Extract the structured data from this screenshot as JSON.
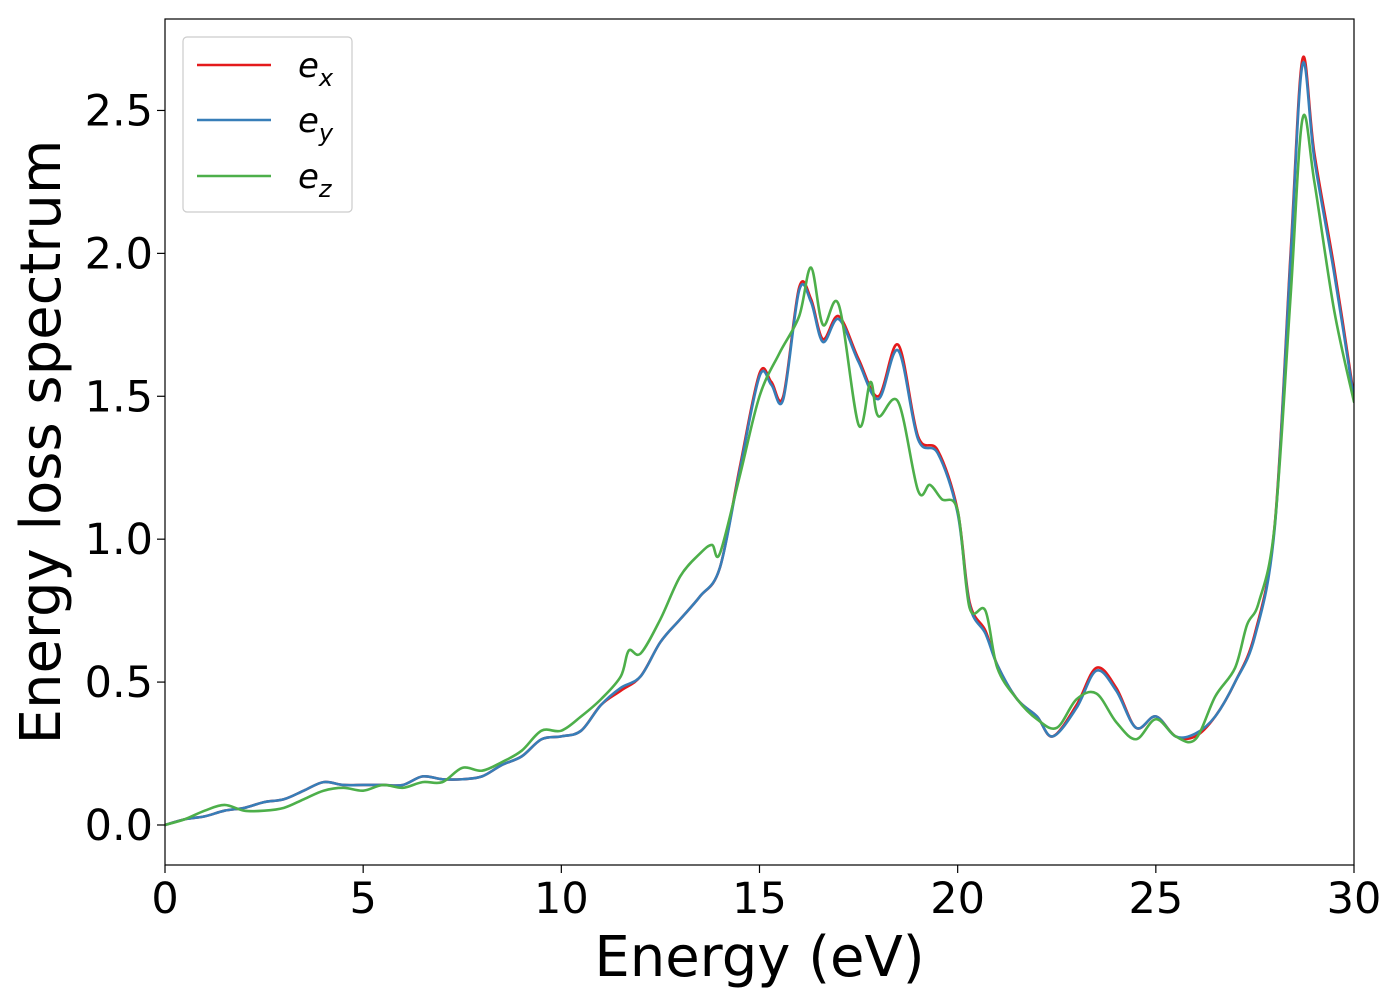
{
  "chart_data": {
    "type": "line",
    "title": "",
    "xlabel": "Energy (eV)",
    "ylabel": "Energy loss spectrum",
    "xlim": [
      0,
      30
    ],
    "ylim": [
      -0.14,
      2.82
    ],
    "grid": false,
    "legend_position": "top-left",
    "x_ticks": [
      0,
      5,
      10,
      15,
      20,
      25,
      30
    ],
    "x_tick_labels": [
      "0",
      "5",
      "10",
      "15",
      "20",
      "25",
      "30"
    ],
    "y_ticks": [
      0.0,
      0.5,
      1.0,
      1.5,
      2.0,
      2.5
    ],
    "y_tick_labels": [
      "0.0",
      "0.5",
      "1.0",
      "1.5",
      "2.0",
      "2.5"
    ],
    "series": [
      {
        "name": "e_x",
        "label_base": "e",
        "label_sub": "x",
        "color": "#e41a1c",
        "points": [
          [
            0,
            0
          ],
          [
            0.5,
            0.02
          ],
          [
            1,
            0.03
          ],
          [
            1.5,
            0.05
          ],
          [
            2,
            0.06
          ],
          [
            2.5,
            0.08
          ],
          [
            3,
            0.09
          ],
          [
            3.5,
            0.12
          ],
          [
            4,
            0.15
          ],
          [
            4.5,
            0.14
          ],
          [
            5,
            0.14
          ],
          [
            5.5,
            0.14
          ],
          [
            6,
            0.14
          ],
          [
            6.5,
            0.17
          ],
          [
            7,
            0.16
          ],
          [
            7.5,
            0.16
          ],
          [
            8,
            0.17
          ],
          [
            8.5,
            0.21
          ],
          [
            9,
            0.24
          ],
          [
            9.5,
            0.3
          ],
          [
            10,
            0.31
          ],
          [
            10.5,
            0.33
          ],
          [
            11,
            0.42
          ],
          [
            11.5,
            0.47
          ],
          [
            12,
            0.52
          ],
          [
            12.5,
            0.64
          ],
          [
            13,
            0.72
          ],
          [
            13.5,
            0.8
          ],
          [
            14,
            0.9
          ],
          [
            14.5,
            1.25
          ],
          [
            15,
            1.58
          ],
          [
            15.3,
            1.55
          ],
          [
            15.6,
            1.5
          ],
          [
            16,
            1.88
          ],
          [
            16.3,
            1.84
          ],
          [
            16.6,
            1.7
          ],
          [
            17,
            1.78
          ],
          [
            17.5,
            1.63
          ],
          [
            18,
            1.5
          ],
          [
            18.5,
            1.68
          ],
          [
            19,
            1.36
          ],
          [
            19.5,
            1.31
          ],
          [
            20,
            1.1
          ],
          [
            20.3,
            0.78
          ],
          [
            20.7,
            0.68
          ],
          [
            21,
            0.56
          ],
          [
            21.5,
            0.44
          ],
          [
            22,
            0.38
          ],
          [
            22.4,
            0.31
          ],
          [
            23,
            0.42
          ],
          [
            23.5,
            0.55
          ],
          [
            24,
            0.48
          ],
          [
            24.5,
            0.34
          ],
          [
            25,
            0.38
          ],
          [
            25.5,
            0.31
          ],
          [
            26,
            0.31
          ],
          [
            26.5,
            0.38
          ],
          [
            27,
            0.5
          ],
          [
            27.5,
            0.67
          ],
          [
            28,
            1.05
          ],
          [
            28.4,
            2.0
          ],
          [
            28.7,
            2.68
          ],
          [
            29,
            2.35
          ],
          [
            29.5,
            1.95
          ],
          [
            30,
            1.5
          ]
        ]
      },
      {
        "name": "e_y",
        "label_base": "e",
        "label_sub": "y",
        "color": "#377eb8",
        "points": [
          [
            0,
            0
          ],
          [
            0.5,
            0.02
          ],
          [
            1,
            0.03
          ],
          [
            1.5,
            0.05
          ],
          [
            2,
            0.06
          ],
          [
            2.5,
            0.08
          ],
          [
            3,
            0.09
          ],
          [
            3.5,
            0.12
          ],
          [
            4,
            0.15
          ],
          [
            4.5,
            0.14
          ],
          [
            5,
            0.14
          ],
          [
            5.5,
            0.14
          ],
          [
            6,
            0.14
          ],
          [
            6.5,
            0.17
          ],
          [
            7,
            0.16
          ],
          [
            7.5,
            0.16
          ],
          [
            8,
            0.17
          ],
          [
            8.5,
            0.21
          ],
          [
            9,
            0.24
          ],
          [
            9.5,
            0.3
          ],
          [
            10,
            0.31
          ],
          [
            10.5,
            0.33
          ],
          [
            11,
            0.42
          ],
          [
            11.5,
            0.48
          ],
          [
            12,
            0.52
          ],
          [
            12.5,
            0.64
          ],
          [
            13,
            0.72
          ],
          [
            13.5,
            0.8
          ],
          [
            14,
            0.9
          ],
          [
            14.5,
            1.24
          ],
          [
            15,
            1.57
          ],
          [
            15.3,
            1.54
          ],
          [
            15.6,
            1.49
          ],
          [
            16,
            1.87
          ],
          [
            16.3,
            1.83
          ],
          [
            16.6,
            1.69
          ],
          [
            17,
            1.77
          ],
          [
            17.5,
            1.62
          ],
          [
            18,
            1.49
          ],
          [
            18.5,
            1.66
          ],
          [
            19,
            1.35
          ],
          [
            19.5,
            1.3
          ],
          [
            20,
            1.09
          ],
          [
            20.3,
            0.77
          ],
          [
            20.7,
            0.67
          ],
          [
            21,
            0.56
          ],
          [
            21.5,
            0.44
          ],
          [
            22,
            0.38
          ],
          [
            22.4,
            0.31
          ],
          [
            23,
            0.41
          ],
          [
            23.5,
            0.54
          ],
          [
            24,
            0.47
          ],
          [
            24.5,
            0.34
          ],
          [
            25,
            0.38
          ],
          [
            25.5,
            0.31
          ],
          [
            26,
            0.32
          ],
          [
            26.5,
            0.38
          ],
          [
            27,
            0.5
          ],
          [
            27.5,
            0.66
          ],
          [
            28,
            1.04
          ],
          [
            28.4,
            1.98
          ],
          [
            28.7,
            2.66
          ],
          [
            29,
            2.33
          ],
          [
            29.5,
            1.93
          ],
          [
            30,
            1.49
          ]
        ]
      },
      {
        "name": "e_z",
        "label_base": "e",
        "label_sub": "z",
        "color": "#4daf4a",
        "points": [
          [
            0,
            0
          ],
          [
            0.5,
            0.02
          ],
          [
            1,
            0.05
          ],
          [
            1.5,
            0.07
          ],
          [
            2,
            0.05
          ],
          [
            2.5,
            0.05
          ],
          [
            3,
            0.06
          ],
          [
            3.5,
            0.09
          ],
          [
            4,
            0.12
          ],
          [
            4.5,
            0.13
          ],
          [
            5,
            0.12
          ],
          [
            5.5,
            0.14
          ],
          [
            6,
            0.13
          ],
          [
            6.5,
            0.15
          ],
          [
            7,
            0.15
          ],
          [
            7.5,
            0.2
          ],
          [
            8,
            0.19
          ],
          [
            8.5,
            0.22
          ],
          [
            9,
            0.26
          ],
          [
            9.5,
            0.33
          ],
          [
            10,
            0.33
          ],
          [
            10.5,
            0.38
          ],
          [
            11,
            0.44
          ],
          [
            11.5,
            0.52
          ],
          [
            11.7,
            0.61
          ],
          [
            12,
            0.6
          ],
          [
            12.5,
            0.72
          ],
          [
            13,
            0.87
          ],
          [
            13.5,
            0.95
          ],
          [
            13.8,
            0.98
          ],
          [
            14,
            0.95
          ],
          [
            14.5,
            1.22
          ],
          [
            15,
            1.5
          ],
          [
            15.5,
            1.65
          ],
          [
            16,
            1.78
          ],
          [
            16.3,
            1.95
          ],
          [
            16.6,
            1.75
          ],
          [
            17,
            1.82
          ],
          [
            17.5,
            1.4
          ],
          [
            17.8,
            1.55
          ],
          [
            18,
            1.43
          ],
          [
            18.5,
            1.48
          ],
          [
            19,
            1.17
          ],
          [
            19.3,
            1.19
          ],
          [
            19.6,
            1.14
          ],
          [
            20,
            1.1
          ],
          [
            20.3,
            0.76
          ],
          [
            20.7,
            0.75
          ],
          [
            21,
            0.55
          ],
          [
            21.5,
            0.44
          ],
          [
            22,
            0.37
          ],
          [
            22.5,
            0.34
          ],
          [
            23,
            0.44
          ],
          [
            23.5,
            0.46
          ],
          [
            24,
            0.36
          ],
          [
            24.5,
            0.3
          ],
          [
            25,
            0.37
          ],
          [
            25.5,
            0.31
          ],
          [
            26,
            0.3
          ],
          [
            26.5,
            0.45
          ],
          [
            27,
            0.55
          ],
          [
            27.3,
            0.7
          ],
          [
            27.6,
            0.78
          ],
          [
            28,
            1.05
          ],
          [
            28.4,
            1.85
          ],
          [
            28.7,
            2.47
          ],
          [
            29,
            2.25
          ],
          [
            29.5,
            1.8
          ],
          [
            30,
            1.48
          ]
        ]
      }
    ]
  }
}
